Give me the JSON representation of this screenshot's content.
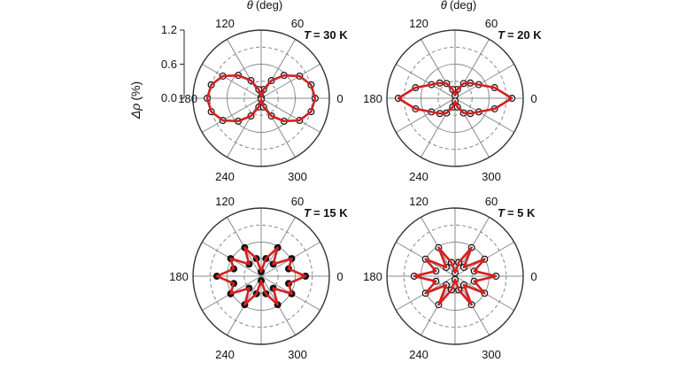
{
  "y_axis": {
    "label_symbol": "Δρ",
    "label_unit": "(%)",
    "ticks": [
      "1.2",
      "0.6",
      "0.0"
    ],
    "range": [
      0,
      1.2
    ]
  },
  "theta_label": {
    "symbol": "θ",
    "unit": "(deg)"
  },
  "angle_ticks": [
    "0",
    "60",
    "120",
    "180",
    "240",
    "300"
  ],
  "temperature_symbol": "T",
  "colors": {
    "fit": "#d42020",
    "data_edge": "#111111",
    "outer_grid": "#333333",
    "inner_grid": "#888888"
  },
  "chart_data": [
    {
      "type": "scatter",
      "coordinate_system": "polar",
      "title": "= 30 K",
      "theta_unit": "deg",
      "r_range": [
        0,
        1.2
      ],
      "series": [
        {
          "style": "open circles (data) with red fit line",
          "theta": [
            0,
            15,
            30,
            45,
            60,
            75,
            90,
            105,
            120,
            135,
            150,
            165,
            180,
            195,
            210,
            225,
            240,
            255,
            270,
            285,
            300,
            315,
            330,
            345
          ],
          "r": [
            0.95,
            0.91,
            0.78,
            0.57,
            0.36,
            0.16,
            0.02,
            0.16,
            0.36,
            0.57,
            0.78,
            0.91,
            0.95,
            0.91,
            0.78,
            0.57,
            0.36,
            0.16,
            0.02,
            0.16,
            0.36,
            0.57,
            0.78,
            0.91
          ]
        }
      ]
    },
    {
      "type": "scatter",
      "coordinate_system": "polar",
      "title": "= 20 K",
      "theta_unit": "deg",
      "r_range": [
        0,
        1.2
      ],
      "series": [
        {
          "style": "open circles (data) with red fit line",
          "theta": [
            0,
            15,
            30,
            45,
            60,
            75,
            90,
            105,
            120,
            135,
            150,
            165,
            180,
            195,
            210,
            225,
            240,
            255,
            270,
            285,
            300,
            315,
            330,
            345
          ],
          "r": [
            1.0,
            0.72,
            0.48,
            0.38,
            0.3,
            0.16,
            0.05,
            0.16,
            0.3,
            0.38,
            0.48,
            0.72,
            1.0,
            0.72,
            0.48,
            0.38,
            0.3,
            0.16,
            0.05,
            0.16,
            0.3,
            0.38,
            0.48,
            0.72
          ]
        }
      ]
    },
    {
      "type": "scatter",
      "coordinate_system": "polar",
      "title": "= 15 K",
      "theta_unit": "deg",
      "r_range": [
        0,
        1.2
      ],
      "series": [
        {
          "style": "closed circles (data) with red fit line",
          "theta": [
            0,
            15,
            30,
            45,
            60,
            75,
            90,
            105,
            120,
            135,
            150,
            165,
            180,
            195,
            210,
            225,
            240,
            255,
            270,
            285,
            300,
            315,
            330,
            345
          ],
          "r": [
            0.78,
            0.5,
            0.62,
            0.3,
            0.58,
            0.32,
            0.08,
            0.32,
            0.58,
            0.3,
            0.62,
            0.5,
            0.78,
            0.5,
            0.62,
            0.3,
            0.58,
            0.32,
            0.08,
            0.32,
            0.58,
            0.3,
            0.62,
            0.5
          ]
        }
      ]
    },
    {
      "type": "scatter",
      "coordinate_system": "polar",
      "title": "= 5 K",
      "theta_unit": "deg",
      "r_range": [
        0,
        1.2
      ],
      "series": [
        {
          "style": "open circles (data) with red fit line",
          "theta": [
            0,
            15,
            30,
            45,
            60,
            75,
            90,
            105,
            120,
            135,
            150,
            165,
            180,
            195,
            210,
            225,
            240,
            255,
            270,
            285,
            300,
            315,
            330,
            345
          ],
          "r": [
            0.72,
            0.35,
            0.6,
            0.22,
            0.58,
            0.25,
            0.06,
            0.25,
            0.58,
            0.22,
            0.6,
            0.35,
            0.72,
            0.35,
            0.6,
            0.22,
            0.58,
            0.25,
            0.06,
            0.25,
            0.58,
            0.22,
            0.6,
            0.35
          ]
        }
      ]
    }
  ]
}
